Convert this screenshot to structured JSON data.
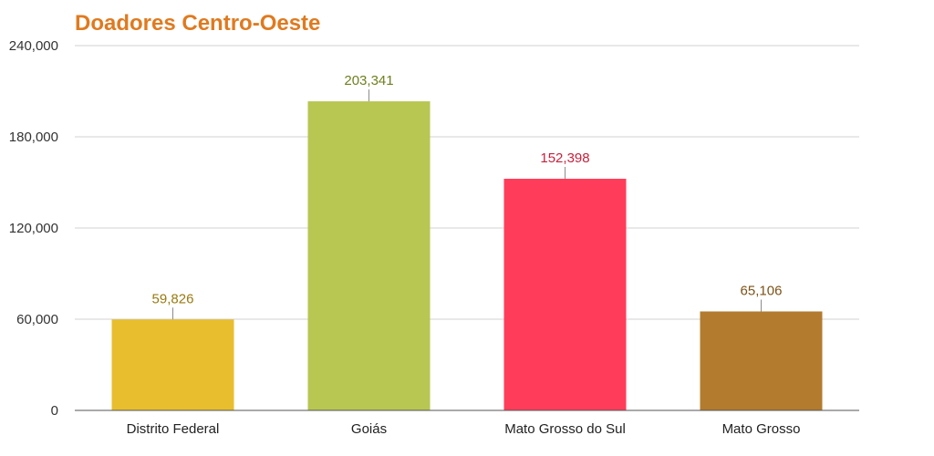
{
  "chart_data": {
    "type": "bar",
    "title": "Doadores Centro-Oeste",
    "title_color": "#E07A1F",
    "categories": [
      "Distrito Federal",
      "Goiás",
      "Mato Grosso do Sul",
      "Mato Grosso"
    ],
    "values": [
      59826,
      203341,
      152398,
      65106
    ],
    "value_labels": [
      "59,826",
      "203,341",
      "152,398",
      "65,106"
    ],
    "colors": [
      "#E8BE2E",
      "#B8C652",
      "#FF3D5A",
      "#B37B2E"
    ],
    "label_colors": [
      "#9A7A10",
      "#6E7F1E",
      "#C8203C",
      "#7E5216"
    ],
    "ylim": [
      0,
      240000
    ],
    "yticks": [
      0,
      60000,
      120000,
      180000,
      240000
    ],
    "ytick_labels": [
      "0",
      "60,000",
      "120,000",
      "180,000",
      "240,000"
    ],
    "grid": true,
    "legend": "none",
    "xlabel": "",
    "ylabel": ""
  }
}
